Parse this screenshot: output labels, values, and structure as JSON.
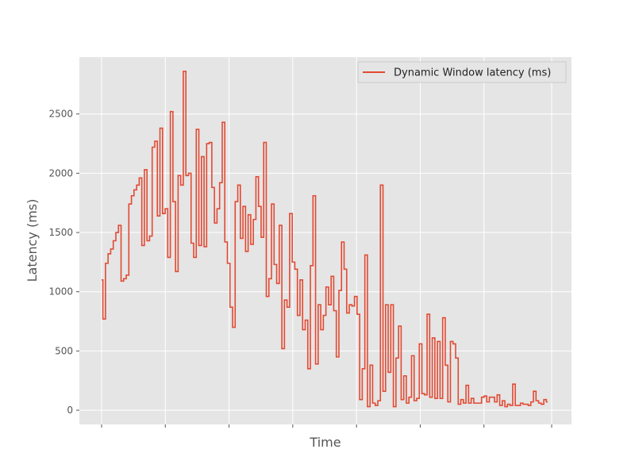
{
  "chart_data": {
    "type": "line",
    "drawstyle": "steps",
    "title": "",
    "xlabel": "Time",
    "ylabel": "Latency (ms)",
    "ylim": [
      -120,
      2980
    ],
    "yticks": [
      0,
      500,
      1000,
      1500,
      2000,
      2500
    ],
    "x_tick_labels_shown": false,
    "x_tick_count": 8,
    "grid": true,
    "legend_position": "top-right",
    "colors": {
      "line": "#E24A33",
      "axes_bg": "#E5E5E5",
      "grid": "#FFFFFF"
    },
    "series": [
      {
        "name": "Dynamic Window latency (ms)",
        "values": [
          1100,
          770,
          1240,
          1320,
          1360,
          1430,
          1500,
          1560,
          1090,
          1110,
          1140,
          1740,
          1810,
          1860,
          1900,
          1960,
          1390,
          2030,
          1430,
          1470,
          2220,
          2270,
          1640,
          2380,
          1660,
          1700,
          1290,
          2520,
          1760,
          1170,
          1980,
          1900,
          2860,
          1980,
          2000,
          1410,
          1290,
          2370,
          1390,
          2140,
          1380,
          2250,
          2260,
          1880,
          1580,
          1700,
          1920,
          2430,
          1420,
          1240,
          870,
          700,
          1760,
          1900,
          1450,
          1720,
          1340,
          1650,
          1400,
          1610,
          1970,
          1720,
          1460,
          2260,
          960,
          1110,
          1740,
          1230,
          1070,
          1560,
          520,
          930,
          870,
          1660,
          1250,
          1190,
          800,
          1100,
          680,
          760,
          350,
          1220,
          1810,
          390,
          890,
          680,
          800,
          1040,
          890,
          1130,
          840,
          450,
          1010,
          1420,
          1190,
          820,
          890,
          880,
          960,
          810,
          90,
          350,
          1310,
          30,
          380,
          60,
          40,
          80,
          1900,
          160,
          890,
          320,
          890,
          30,
          440,
          710,
          90,
          290,
          60,
          110,
          460,
          80,
          100,
          560,
          140,
          130,
          810,
          110,
          610,
          100,
          580,
          100,
          780,
          380,
          70,
          580,
          560,
          440,
          50,
          90,
          60,
          210,
          60,
          100,
          60,
          60,
          60,
          110,
          120,
          70,
          110,
          110,
          70,
          130,
          40,
          80,
          30,
          50,
          40,
          220,
          40,
          40,
          60,
          50,
          50,
          40,
          70,
          160,
          80,
          60,
          50,
          90,
          70
        ]
      }
    ]
  }
}
